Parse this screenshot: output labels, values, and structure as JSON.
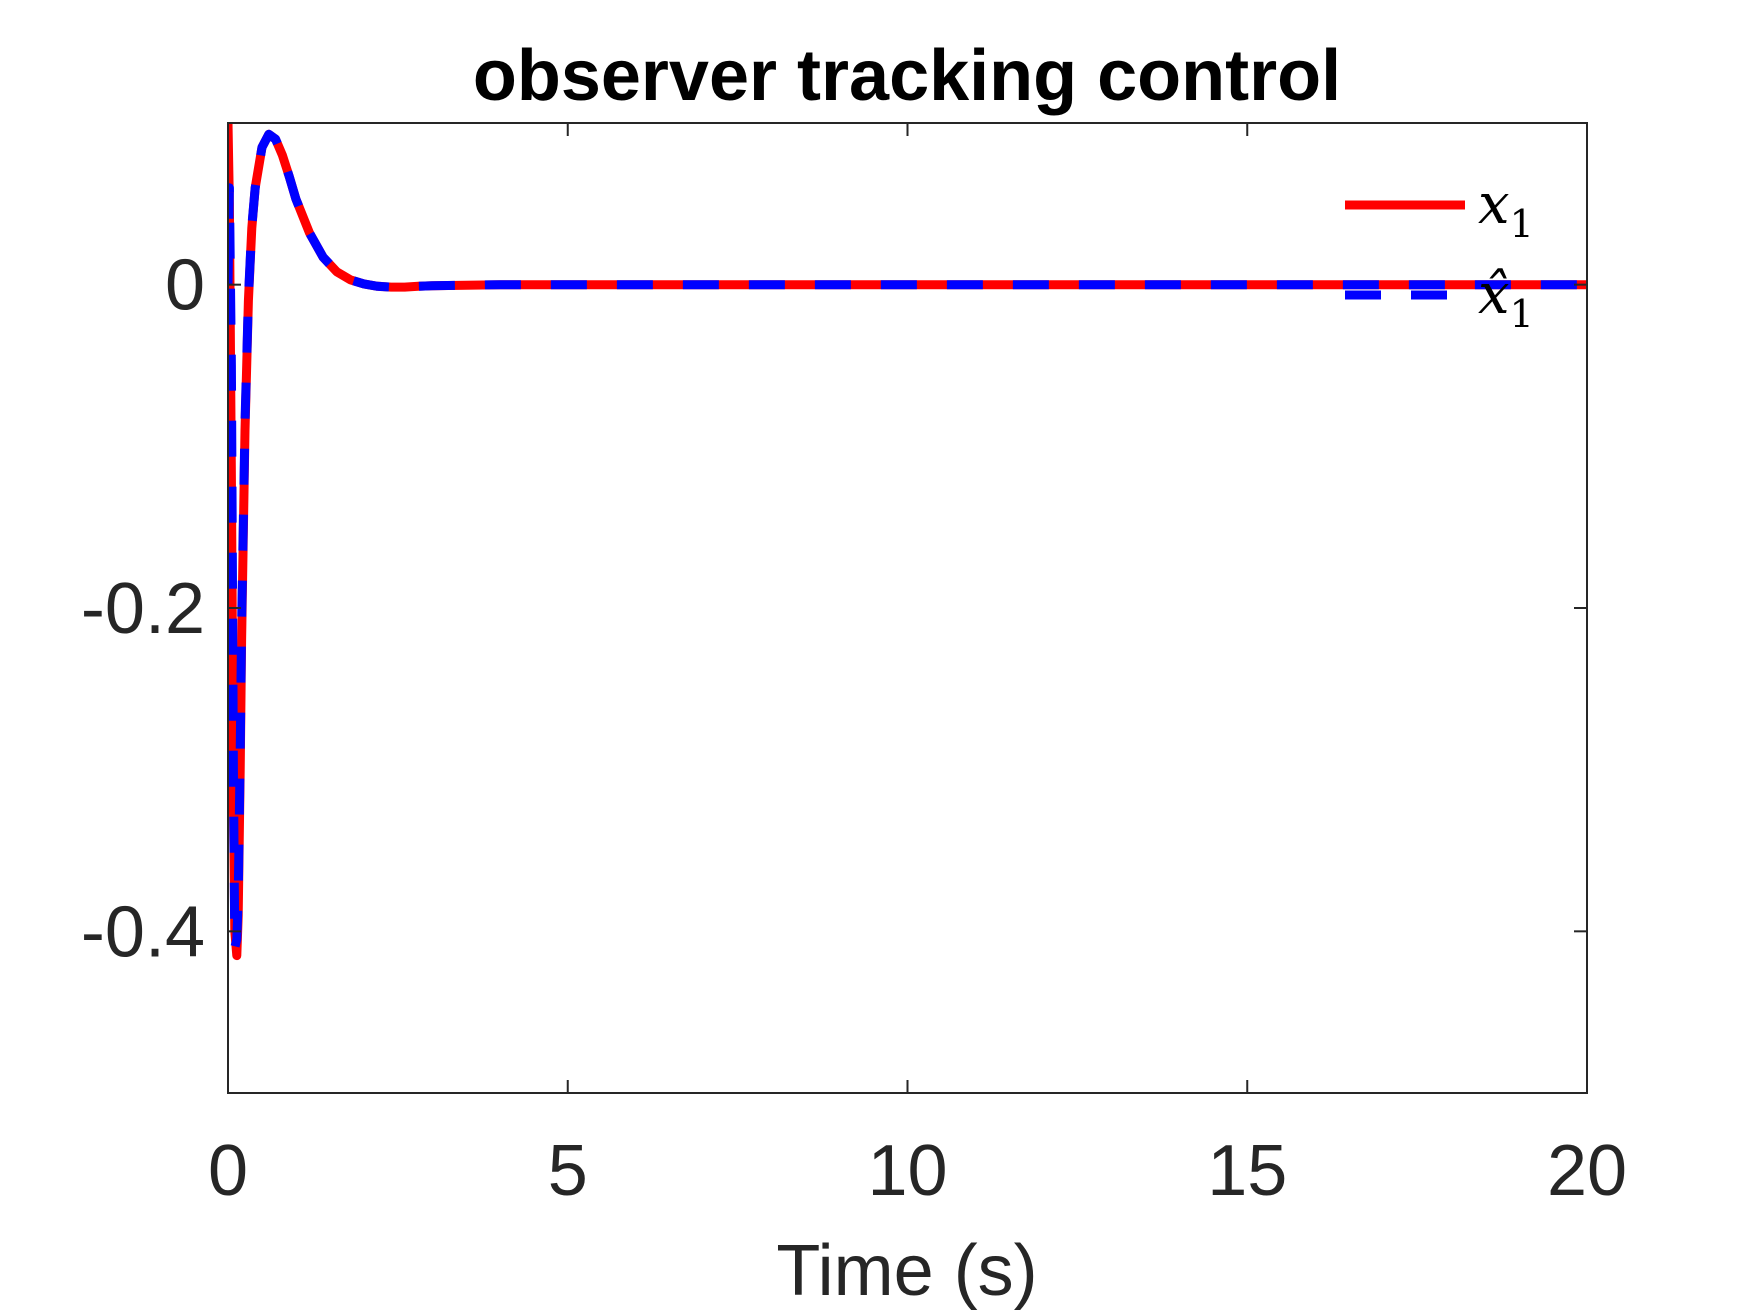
{
  "chart_data": {
    "type": "line",
    "title": "observer tracking control",
    "xlabel": "Time (s)",
    "ylabel": "",
    "xlim": [
      0,
      20
    ],
    "ylim": [
      -0.5,
      0.1
    ],
    "xticks": [
      0,
      5,
      10,
      15,
      20
    ],
    "xtick_labels": [
      "0",
      "5",
      "10",
      "15",
      "20"
    ],
    "yticks": [
      -0.4,
      -0.2,
      0
    ],
    "ytick_labels": [
      "-0.4",
      "-0.2",
      "0"
    ],
    "grid": false,
    "box": true,
    "legend_position": "top-right",
    "series": [
      {
        "name": "x_1",
        "label_main": "x",
        "label_sub": "1",
        "color": "#ff0000",
        "style": "solid",
        "x": [
          0,
          0.02,
          0.05,
          0.08,
          0.1,
          0.13,
          0.15,
          0.18,
          0.2,
          0.25,
          0.3,
          0.35,
          0.4,
          0.5,
          0.6,
          0.7,
          0.8,
          0.9,
          1.0,
          1.2,
          1.4,
          1.6,
          1.8,
          2.0,
          2.2,
          2.4,
          2.6,
          2.8,
          3.0,
          3.5,
          4.0,
          5.0,
          8.0,
          12.0,
          16.0,
          20.0
        ],
        "y": [
          0.1,
          0.05,
          -0.12,
          -0.32,
          -0.4,
          -0.415,
          -0.39,
          -0.3,
          -0.22,
          -0.09,
          -0.01,
          0.035,
          0.06,
          0.085,
          0.093,
          0.09,
          0.08,
          0.067,
          0.053,
          0.032,
          0.017,
          0.008,
          0.003,
          0.0005,
          -0.001,
          -0.0015,
          -0.0015,
          -0.001,
          -0.0007,
          -0.0003,
          0.0,
          0.0,
          0.0,
          0.0,
          0.0,
          0.0
        ]
      },
      {
        "name": "x̂_1",
        "label_main": "x̂",
        "label_sub": "1",
        "color": "#0000ff",
        "style": "dashed",
        "x": [
          0,
          0.02,
          0.05,
          0.08,
          0.1,
          0.13,
          0.15,
          0.18,
          0.2,
          0.25,
          0.3,
          0.35,
          0.4,
          0.5,
          0.6,
          0.7,
          0.8,
          0.9,
          1.0,
          1.2,
          1.4,
          1.6,
          1.8,
          2.0,
          2.2,
          2.4,
          2.6,
          2.8,
          3.0,
          3.5,
          4.0,
          5.0,
          8.0,
          12.0,
          16.0,
          20.0
        ],
        "y": [
          0.0,
          0.06,
          -0.05,
          -0.3,
          -0.41,
          -0.405,
          -0.38,
          -0.29,
          -0.21,
          -0.085,
          -0.008,
          0.036,
          0.06,
          0.085,
          0.093,
          0.09,
          0.08,
          0.067,
          0.053,
          0.032,
          0.017,
          0.008,
          0.003,
          0.0005,
          -0.001,
          -0.0015,
          -0.0015,
          -0.001,
          -0.0007,
          -0.0003,
          0.0,
          0.0,
          0.0,
          0.0,
          0.0,
          0.0
        ]
      }
    ]
  }
}
